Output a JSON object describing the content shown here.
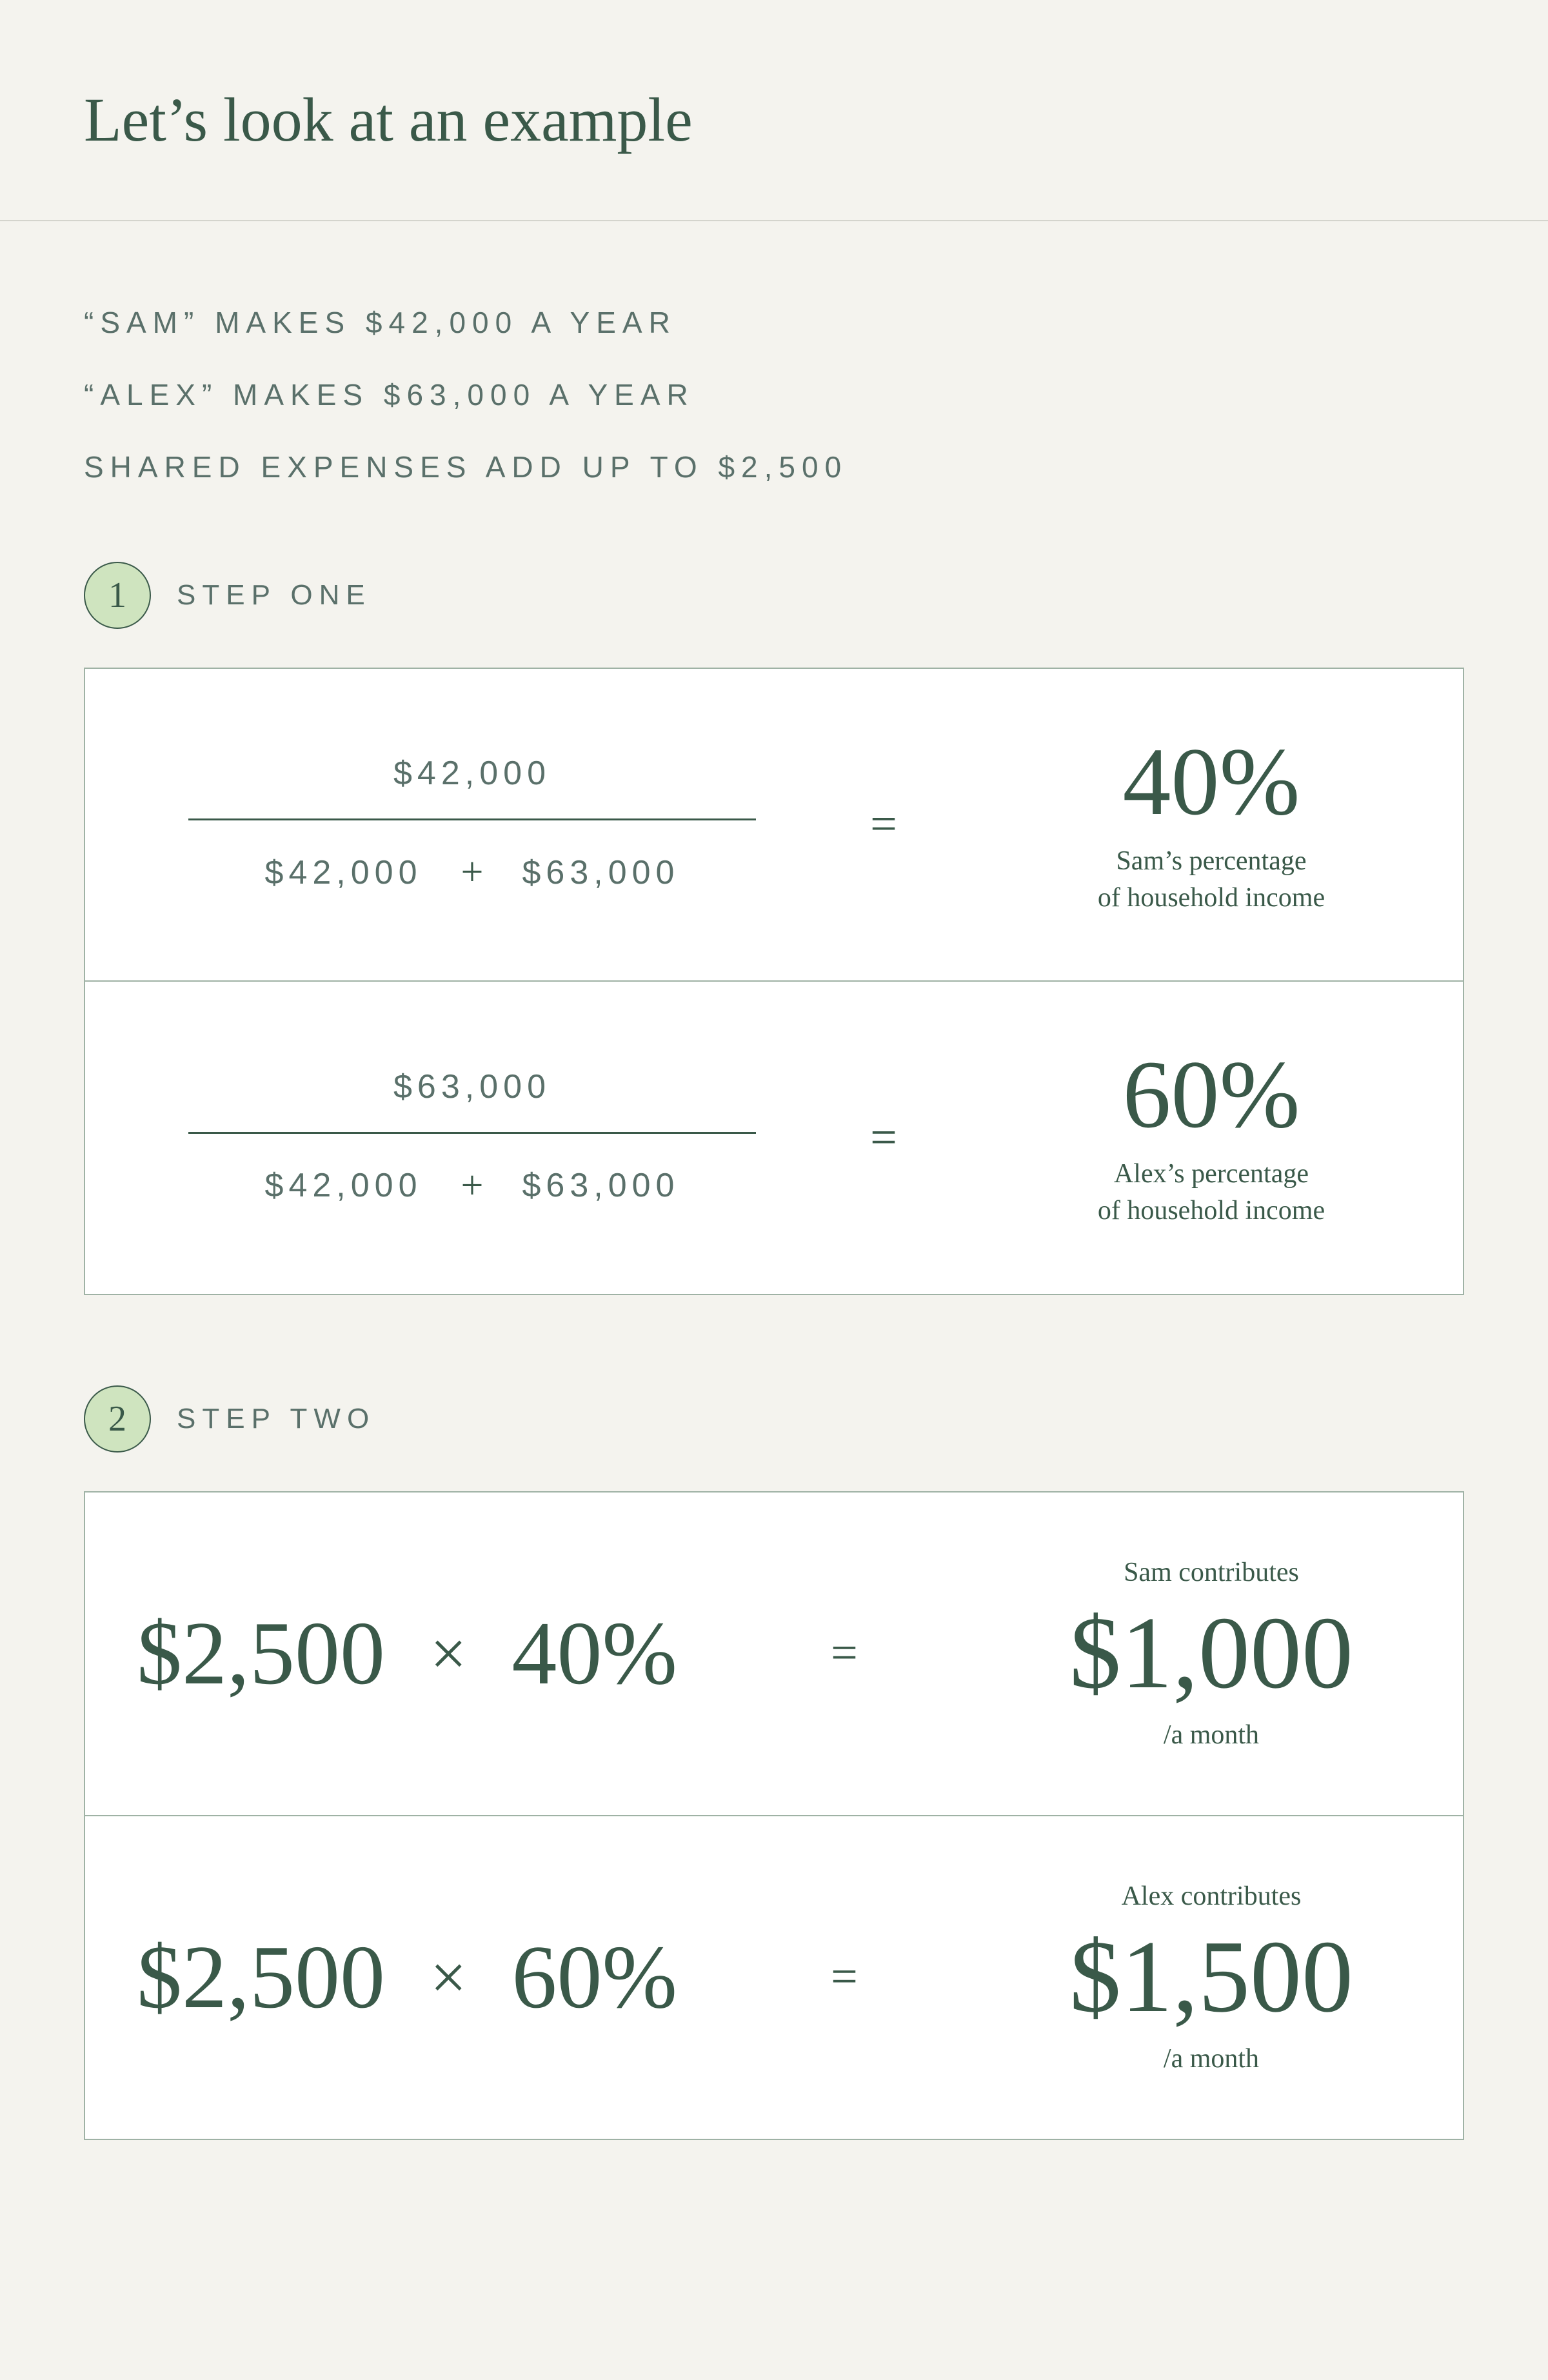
{
  "title": "Let’s look at an example",
  "premise": {
    "line1": "“SAM” MAKES $42,000 A YEAR",
    "line2": "“ALEX” MAKES $63,000 A YEAR",
    "line3": "SHARED EXPENSES ADD UP TO $2,500"
  },
  "step1": {
    "badge": "1",
    "label": "STEP ONE",
    "rows": [
      {
        "numerator": "$42,000",
        "denom_a": "$42,000",
        "denom_b": "$63,000",
        "pct": "40%",
        "caption_line1": "Sam’s percentage",
        "caption_line2": "of household income"
      },
      {
        "numerator": "$63,000",
        "denom_a": "$42,000",
        "denom_b": "$63,000",
        "pct": "60%",
        "caption_line1": "Alex’s percentage",
        "caption_line2": "of household income"
      }
    ]
  },
  "step2": {
    "badge": "2",
    "label": "STEP TWO",
    "rows": [
      {
        "amount": "$2,500",
        "pct": "40%",
        "who": "Sam contributes",
        "result": "$1,000",
        "per": "/a month"
      },
      {
        "amount": "$2,500",
        "pct": "60%",
        "who": "Alex contributes",
        "result": "$1,500",
        "per": "/a month"
      }
    ]
  },
  "symbols": {
    "plus": "+",
    "equals": "=",
    "times": "×"
  },
  "colors": {
    "background": "#f4f3ee",
    "box_background": "#ffffff",
    "border": "#9fb2a5",
    "divider": "#d4d4cd",
    "text_primary": "#3a5949",
    "text_secondary": "#5a706a",
    "badge_fill": "#cfe4bf"
  },
  "typography": {
    "title_fontsize": 96,
    "premise_fontsize": 46,
    "premise_letter_spacing": 10,
    "fraction_fontsize": 52,
    "pct_big_fontsize": 150,
    "pct_caption_fontsize": 42,
    "step2_big_fontsize": 140,
    "amount_big_fontsize": 160,
    "equals_fontsize": 74
  }
}
